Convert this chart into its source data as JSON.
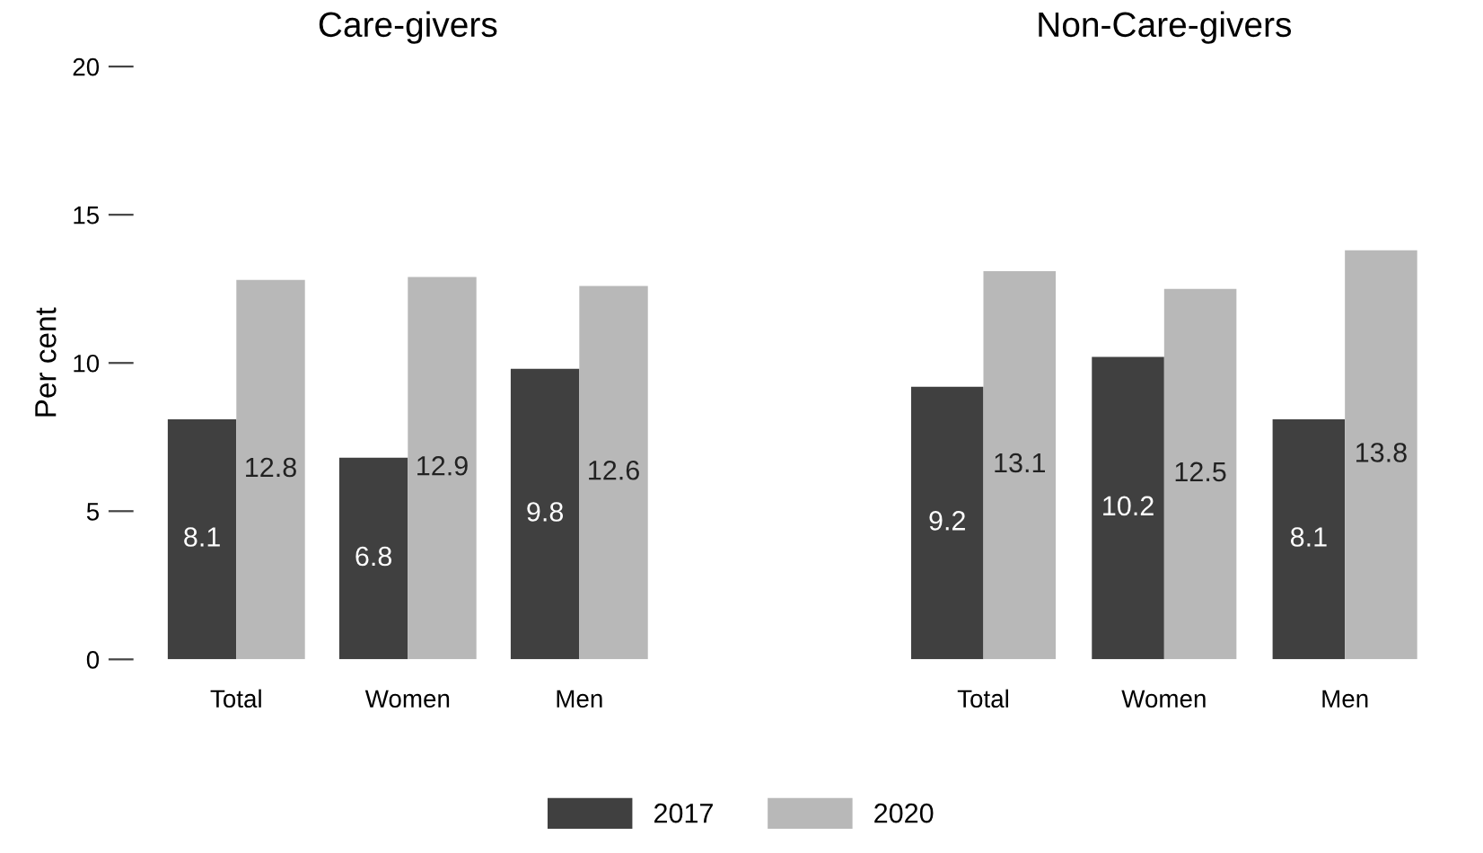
{
  "chart_data": [
    {
      "type": "bar",
      "title": "Care-givers",
      "ylabel": "Per cent",
      "categories": [
        "Total",
        "Women",
        "Men"
      ],
      "series": [
        {
          "name": "2017",
          "color": "#404040",
          "values": [
            8.1,
            6.8,
            9.8
          ]
        },
        {
          "name": "2020",
          "color": "#b8b8b8",
          "values": [
            12.8,
            12.9,
            12.6
          ]
        }
      ],
      "ylim": [
        0,
        20
      ],
      "yticks": [
        0,
        5,
        10,
        15,
        20
      ],
      "data_labels": true,
      "grid": false,
      "legend": "bottom"
    },
    {
      "type": "bar",
      "title": "Non-Care-givers",
      "categories": [
        "Total",
        "Women",
        "Men"
      ],
      "series": [
        {
          "name": "2017",
          "color": "#404040",
          "values": [
            9.2,
            10.2,
            8.1
          ]
        },
        {
          "name": "2020",
          "color": "#b8b8b8",
          "values": [
            13.1,
            12.5,
            13.8
          ]
        }
      ],
      "ylim": [
        0,
        20
      ],
      "yticks": [
        0,
        5,
        10,
        15,
        20
      ],
      "data_labels": true,
      "grid": false,
      "tick_labels": "x"
    }
  ]
}
